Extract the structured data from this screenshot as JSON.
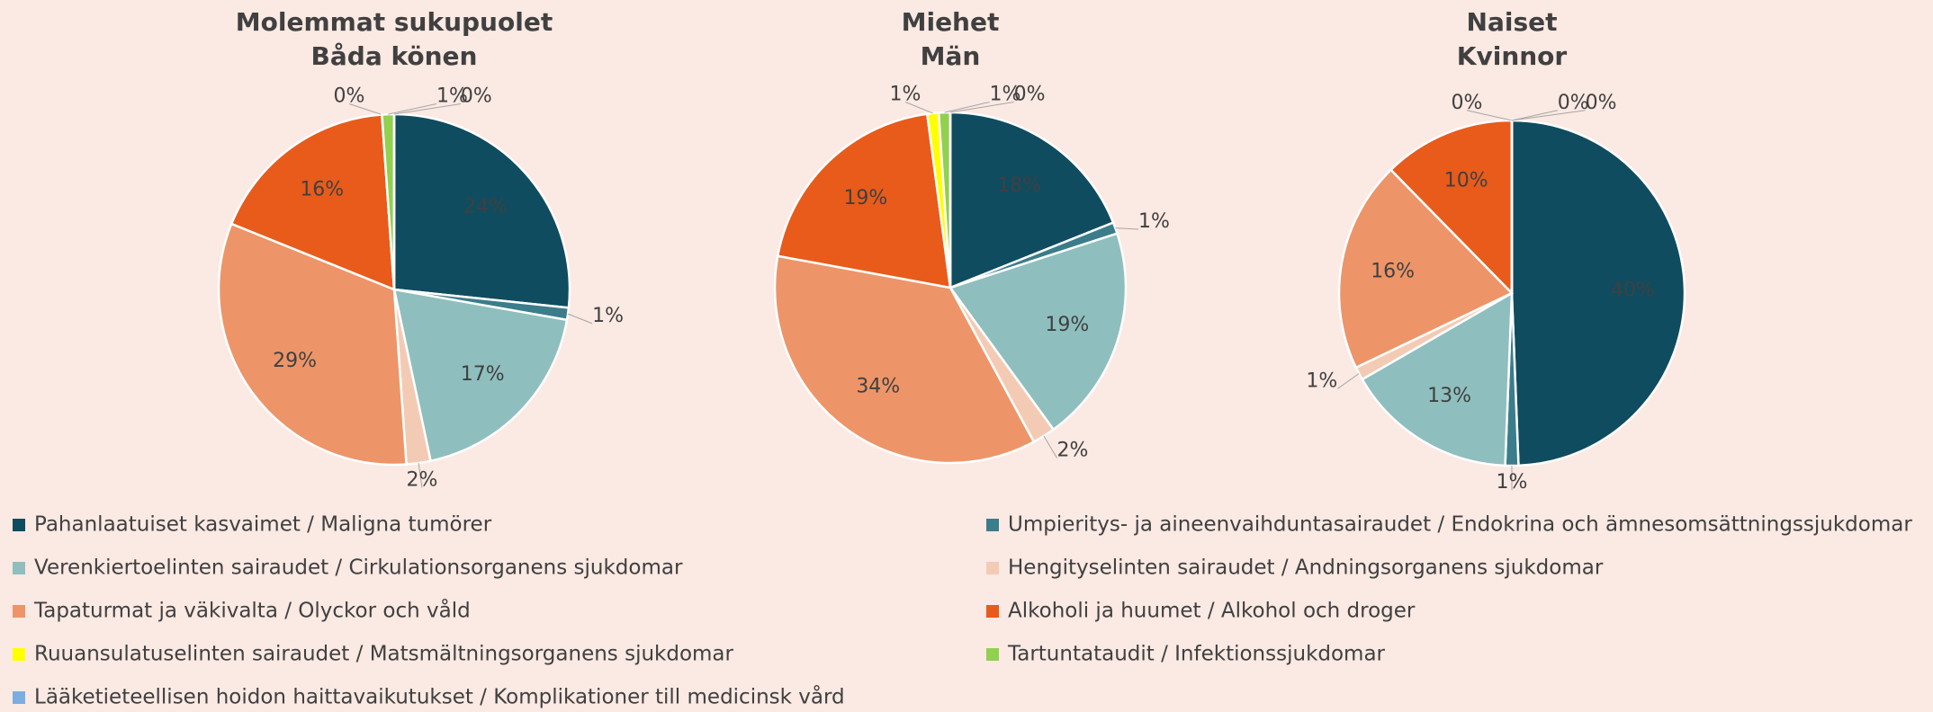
{
  "chart_data": [
    {
      "type": "pie",
      "title": [
        "Molemmat sukupuolet",
        "Båda könen"
      ],
      "categories": [
        "Pahanlaatuiset kasvaimet / Maligna tumörer",
        "Umpieritys- ja aineenvaihduntasairaudet / Endokrina och ämnesomsättningssjukdomar",
        "Verenkiertoelinten sairaudet / Cirkulationsorganens sjukdomar",
        "Hengityselinten sairaudet / Andningsorganens sjukdomar",
        "Tapaturmat ja väkivalta / Olyckor och våld",
        "Alkoholi ja huumet / Alkohol och droger",
        "Ruuansulatuselinten sairaudet / Matsmältningsorganens sjukdomar",
        "Tartuntataudit / Infektionssjukdomar",
        "Lääketieteellisen hoidon haittavaikutukset / Komplikationer till medicinsk vård"
      ],
      "colors": [
        "#0f4c5f",
        "#3b7d8a",
        "#8ebfbe",
        "#f3cbb5",
        "#ed9568",
        "#e85b1b",
        "#ffff00",
        "#92d050",
        "#7aaee0"
      ],
      "values": [
        24,
        1,
        17,
        2,
        29,
        16,
        0,
        1,
        0
      ],
      "value_labels": [
        "24%",
        "1%",
        "17%",
        "2%",
        "29%",
        "16%",
        "0%",
        "1%",
        "0%"
      ]
    },
    {
      "type": "pie",
      "title": [
        "Miehet",
        "Män"
      ],
      "categories": [
        "Pahanlaatuiset kasvaimet / Maligna tumörer",
        "Umpieritys- ja aineenvaihduntasairaudet / Endokrina och ämnesomsättningssjukdomar",
        "Verenkiertoelinten sairaudet / Cirkulationsorganens sjukdomar",
        "Hengityselinten sairaudet / Andningsorganens sjukdomar",
        "Tapaturmat ja väkivalta / Olyckor och våld",
        "Alkoholi ja huumet / Alkohol och droger",
        "Ruuansulatuselinten sairaudet / Matsmältningsorganens sjukdomar",
        "Tartuntataudit / Infektionssjukdomar",
        "Lääketieteellisen hoidon haittavaikutukset / Komplikationer till medicinsk vård"
      ],
      "colors": [
        "#0f4c5f",
        "#3b7d8a",
        "#8ebfbe",
        "#f3cbb5",
        "#ed9568",
        "#e85b1b",
        "#ffff00",
        "#92d050",
        "#7aaee0"
      ],
      "values": [
        18,
        1,
        19,
        2,
        34,
        19,
        1,
        1,
        0
      ],
      "value_labels": [
        "18%",
        "1%",
        "19%",
        "2%",
        "34%",
        "19%",
        "1%",
        "1%",
        "0%"
      ]
    },
    {
      "type": "pie",
      "title": [
        "Naiset",
        "Kvinnor"
      ],
      "categories": [
        "Pahanlaatuiset kasvaimet / Maligna tumörer",
        "Umpieritys- ja aineenvaihduntasairaudet / Endokrina och ämnesomsättningssjukdomar",
        "Verenkiertoelinten sairaudet / Cirkulationsorganens sjukdomar",
        "Hengityselinten sairaudet / Andningsorganens sjukdomar",
        "Tapaturmat ja väkivalta / Olyckor och våld",
        "Alkoholi ja huumet / Alkohol och droger",
        "Ruuansulatuselinten sairaudet / Matsmältningsorganens sjukdomar",
        "Tartuntataudit / Infektionssjukdomar",
        "Lääketieteellisen hoidon haittavaikutukset / Komplikationer till medicinsk vård"
      ],
      "colors": [
        "#0f4c5f",
        "#3b7d8a",
        "#8ebfbe",
        "#f3cbb5",
        "#ed9568",
        "#e85b1b",
        "#ffff00",
        "#92d050",
        "#7aaee0"
      ],
      "values": [
        40,
        1,
        13,
        1,
        16,
        10,
        0,
        0,
        0
      ],
      "value_labels": [
        "40%",
        "1%",
        "13%",
        "1%",
        "16%",
        "10%",
        "0%",
        "0%",
        "0%"
      ]
    }
  ]
}
